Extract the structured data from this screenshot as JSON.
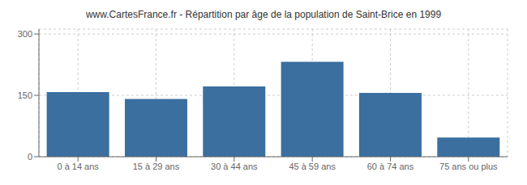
{
  "chart_data": {
    "type": "bar",
    "title": "www.CartesFrance.fr - Répartition par âge de la population de Saint-Brice en 1999",
    "categories": [
      "0 à 14 ans",
      "15 à 29 ans",
      "30 à 44 ans",
      "45 à 59 ans",
      "60 à 74 ans",
      "75 ans ou plus"
    ],
    "values": [
      158,
      141,
      172,
      232,
      156,
      47
    ],
    "color": "#3a6f9f",
    "ylim": [
      0,
      312
    ],
    "yticks": [
      0,
      150,
      300
    ],
    "grid": true
  }
}
